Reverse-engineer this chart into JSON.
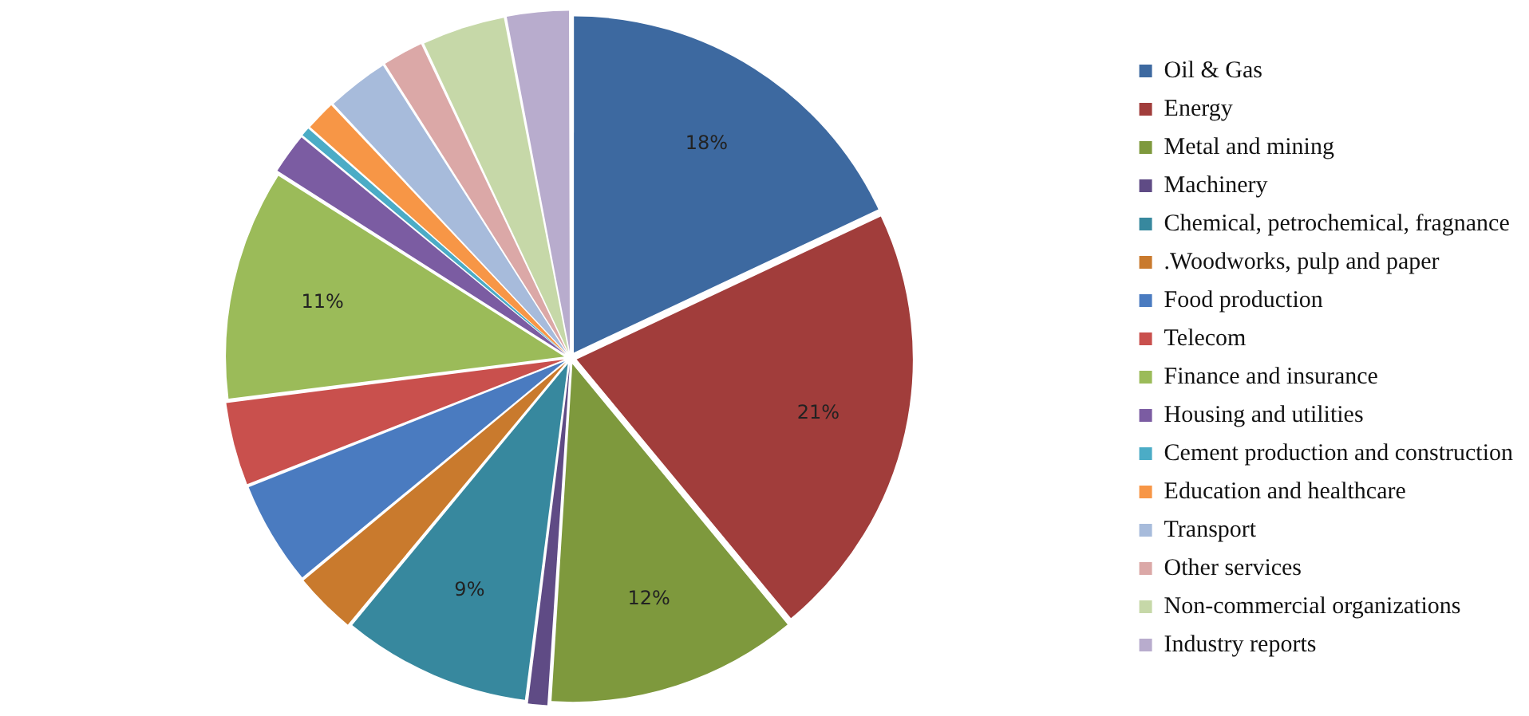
{
  "chart_data": {
    "type": "pie",
    "categories": [
      "Oil & Gas",
      "Energy",
      "Metal and mining",
      "Machinery",
      "Chemical, petrochemical, fragnance",
      ".Woodworks, pulp and paper",
      "Food production",
      "Telecom",
      "Finance and insurance",
      "Housing and utilities",
      "Cement production and construction",
      "Education and healthcare",
      "Transport",
      "Other services",
      "Non-commercial organizations",
      "Industry reports"
    ],
    "values": [
      18,
      21,
      12,
      1,
      9,
      3,
      5,
      4,
      11,
      2,
      0.5,
      1.5,
      3,
      2,
      4,
      3
    ],
    "colors": [
      "#3d69a0",
      "#a13d3b",
      "#7e993d",
      "#5f4b85",
      "#37889e",
      "#c97a2d",
      "#4a7bc0",
      "#c9504d",
      "#9bbb59",
      "#7b5ca2",
      "#4bacc6",
      "#f79646",
      "#a7bbdb",
      "#dba8a7",
      "#c6d8a8",
      "#b8accd"
    ],
    "value_labels": [
      "18%",
      "21%",
      "12%",
      null,
      "9%",
      null,
      null,
      null,
      "11%",
      null,
      null,
      null,
      null,
      null,
      null,
      null
    ],
    "legend": "right"
  }
}
